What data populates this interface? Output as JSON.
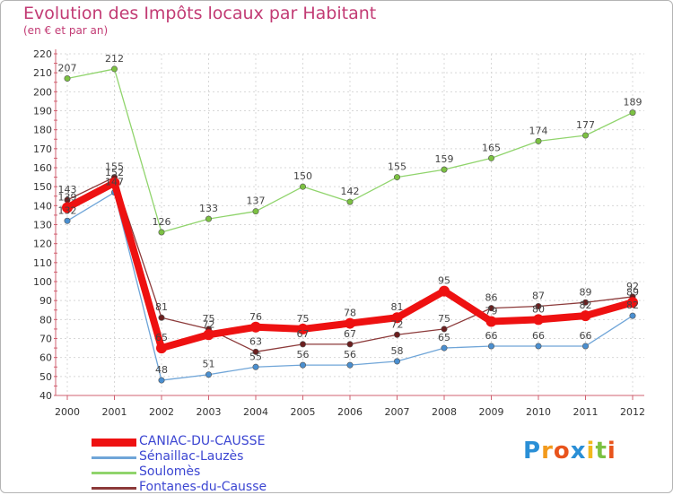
{
  "title": "Evolution des Impôts locaux par Habitant",
  "subtitle": "(en € et par an)",
  "logo": {
    "text": "Proxiti",
    "letters": [
      "P",
      "r",
      "o",
      "x",
      "i",
      "t",
      "i"
    ],
    "letter_colors": [
      "#2a8fd6",
      "#f29a1c",
      "#e8541c",
      "#2a8fd6",
      "#f2b81c",
      "#7cc142",
      "#e8541c"
    ]
  },
  "chart_data": {
    "type": "line",
    "title": "Evolution des Impôts locaux par Habitant",
    "subtitle": "(en € et par an)",
    "xlabel": "",
    "ylabel": "",
    "x": [
      "2000",
      "2001",
      "2002",
      "2003",
      "2004",
      "2005",
      "2006",
      "2007",
      "2008",
      "2009",
      "2010",
      "2011",
      "2012"
    ],
    "ylim": [
      40,
      220
    ],
    "yticks": [
      40,
      50,
      60,
      70,
      80,
      90,
      100,
      110,
      120,
      130,
      140,
      150,
      160,
      170,
      180,
      190,
      200,
      210,
      220
    ],
    "grid": true,
    "legend_position": "bottom-left",
    "series": [
      {
        "name": "Soulomès",
        "color": "#90d46c",
        "marker": "#7cc142",
        "values": [
          207,
          212,
          126,
          133,
          137,
          150,
          142,
          155,
          159,
          165,
          174,
          177,
          189
        ],
        "labels": [
          "207",
          "212",
          "126",
          "133",
          "137",
          "150",
          "142",
          "155",
          "159",
          "165",
          "174",
          "177",
          "189"
        ]
      },
      {
        "name": "Sénaillac-Lauzès",
        "color": "#6fa5d8",
        "marker": "#4a8fd0",
        "values": [
          132,
          147,
          48,
          51,
          55,
          56,
          56,
          58,
          65,
          66,
          66,
          66,
          82
        ],
        "labels": [
          "132",
          "147",
          "48",
          "51",
          "55",
          "56",
          "56",
          "58",
          "65",
          "66",
          "66",
          "66",
          "82"
        ]
      },
      {
        "name": "Fontanes-du-Causse",
        "color": "#8c3a3a",
        "marker": "#6b1f1f",
        "values": [
          143,
          155,
          81,
          75,
          63,
          67,
          67,
          72,
          75,
          86,
          87,
          89,
          92
        ],
        "labels": [
          "143",
          "155",
          "81",
          "75",
          "63",
          "67",
          "67",
          "72",
          "75",
          "86",
          "87",
          "89",
          "92"
        ]
      },
      {
        "name": "CANIAC-DU-CAUSSE",
        "color": "#ee1111",
        "marker": "#ee1111",
        "values": [
          139,
          152,
          65,
          72,
          76,
          75,
          78,
          81,
          95,
          79,
          80,
          82,
          89
        ],
        "labels": [
          "139",
          "152",
          "65",
          "72",
          "76",
          "75",
          "78",
          "81",
          "95",
          "79",
          "80",
          "82",
          "89"
        ]
      }
    ]
  },
  "legend": [
    {
      "label": "CANIAC-DU-CAUSSE",
      "color": "#ee1111",
      "thickness": "thick"
    },
    {
      "label": "Sénaillac-Lauzès",
      "color": "#6fa5d8",
      "thickness": "thin"
    },
    {
      "label": "Soulomès",
      "color": "#90d46c",
      "thickness": "thin"
    },
    {
      "label": "Fontanes-du-Causse",
      "color": "#8c3a3a",
      "thickness": "thin"
    }
  ]
}
